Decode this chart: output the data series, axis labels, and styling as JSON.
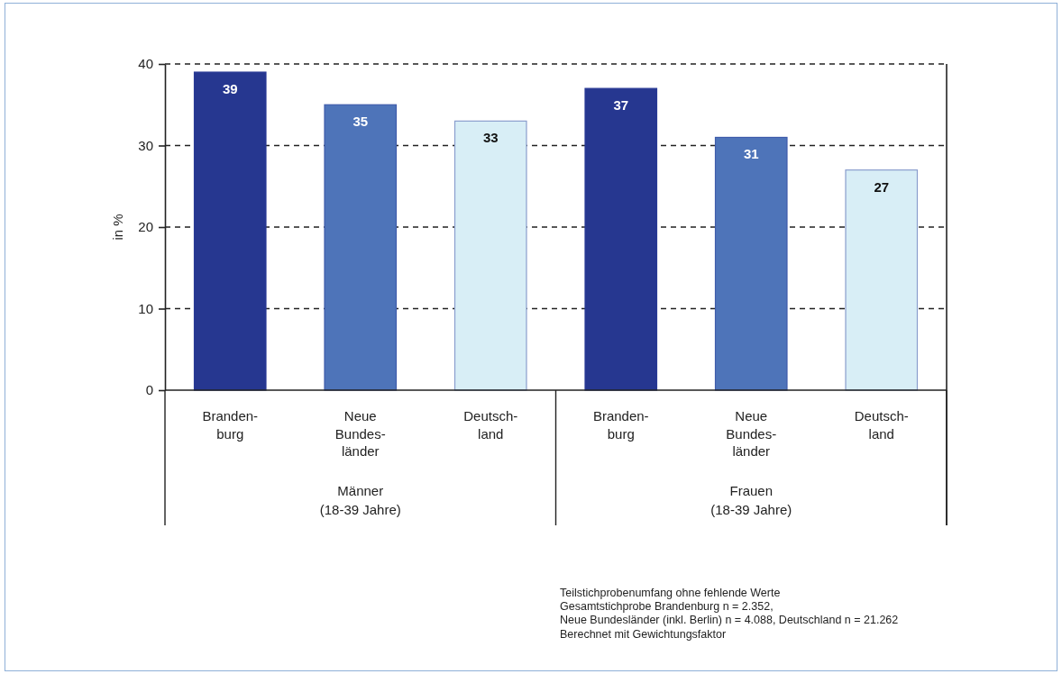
{
  "chart_data": {
    "type": "bar",
    "categories": [
      "Männer\n(18-39 Jahre)",
      "Frauen\n(18-39 Jahre)"
    ],
    "series": [
      {
        "name": "Branden-\nburg",
        "color": "#263790",
        "values": [
          39,
          37
        ]
      },
      {
        "name": "Neue\nBundes-\nländer",
        "color": "#4e74b9",
        "values": [
          35,
          31
        ]
      },
      {
        "name": "Deutsch-\nland",
        "color": "#d8eef6",
        "values": [
          33,
          27
        ]
      }
    ],
    "ylabel": "in %",
    "ylim": [
      0,
      40
    ],
    "yticks": [
      0,
      10,
      20,
      30,
      40
    ],
    "grid": "y",
    "data_labels": true,
    "annotations": [
      "Teilstichprobenumfang ohne fehlende Werte",
      "Gesamtstichprobe Brandenburg n = 2.352,",
      "Neue Bundesländer (inkl. Berlin) n = 4.088, Deutschland n = 21.262",
      "Berechnet mit Gewichtungsfaktor"
    ]
  }
}
